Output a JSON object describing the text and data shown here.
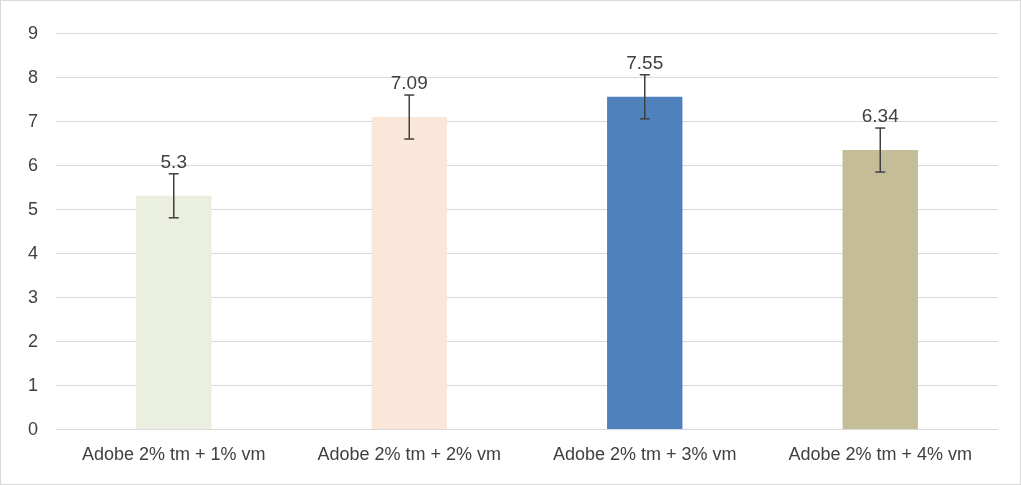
{
  "chart_data": {
    "type": "bar",
    "categories": [
      "Adobe 2% tm + 1% vm",
      "Adobe 2% tm + 2% vm",
      "Adobe 2% tm + 3% vm",
      "Adobe 2% tm + 4% vm"
    ],
    "values": [
      5.3,
      7.09,
      7.55,
      6.34
    ],
    "colors": [
      "#ebefdf",
      "#fbe6da",
      "#4f81bd",
      "#c4bd97"
    ],
    "errors": [
      0.5,
      0.5,
      0.5,
      0.5
    ],
    "data_labels": true,
    "ylim": [
      0,
      9
    ],
    "yticks": [
      0,
      1,
      2,
      3,
      4,
      5,
      6,
      7,
      8,
      9
    ],
    "grid": "y"
  }
}
